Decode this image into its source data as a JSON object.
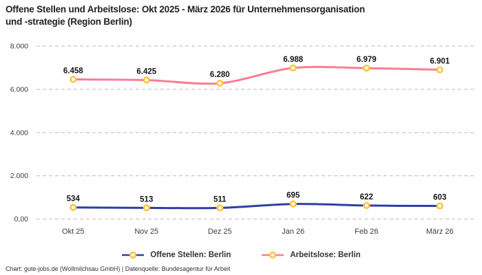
{
  "title": "Offene Stellen und Arbeitslose: Okt 2025 - März 2026 für Unternehmensorganisation und -strategie (Region Berlin)",
  "title_lines": [
    "Offene Stellen und Arbeitslose: Okt 2025 - März 2026 für Unternehmensorganisation",
    "und -strategie (Region Berlin)"
  ],
  "footer": "Chart: gute-jobs.de (Wollmilchsau GmbH) | Datenquelle: Bundesagentur für Arbeit",
  "colors": {
    "open_positions": "#2d3ea3",
    "unemployed": "#f97d95",
    "marker_ring": "#ffc53d",
    "marker_fill": "#ffffff",
    "grid": "#c7c7c7",
    "axis_text": "#3c3c3c",
    "label_text": "#141414"
  },
  "chart_data": {
    "type": "line",
    "title": "Offene Stellen und Arbeitslose: Okt 2025 - März 2026 für Unternehmensorganisation und -strategie (Region Berlin)",
    "categories": [
      "Okt 25",
      "Nov 25",
      "Dez 25",
      "Jan 26",
      "Feb 26",
      "März 26"
    ],
    "series": [
      {
        "name": "Offene Stellen: Berlin",
        "values": [
          534,
          513,
          511,
          695,
          622,
          603
        ],
        "labels": [
          "534",
          "513",
          "511",
          "695",
          "622",
          "603"
        ],
        "color_key": "open_positions"
      },
      {
        "name": "Arbeitslose: Berlin",
        "values": [
          6458,
          6425,
          6280,
          6988,
          6979,
          6901
        ],
        "labels": [
          "6.458",
          "6.425",
          "6.280",
          "6.988",
          "6.979",
          "6.901"
        ],
        "color_key": "unemployed"
      }
    ],
    "y_ticks": [
      {
        "value": 8000,
        "label": "8.000"
      },
      {
        "value": 6000,
        "label": "6.000"
      },
      {
        "value": 4000,
        "label": "4.000"
      },
      {
        "value": 2000,
        "label": "2.000"
      },
      {
        "value": 0,
        "label": "0,00"
      }
    ],
    "ylim": [
      0,
      8000
    ],
    "grid": "horizontal-dashed",
    "legend_position": "bottom",
    "marker_style": "ring",
    "line_smoothing": true
  }
}
